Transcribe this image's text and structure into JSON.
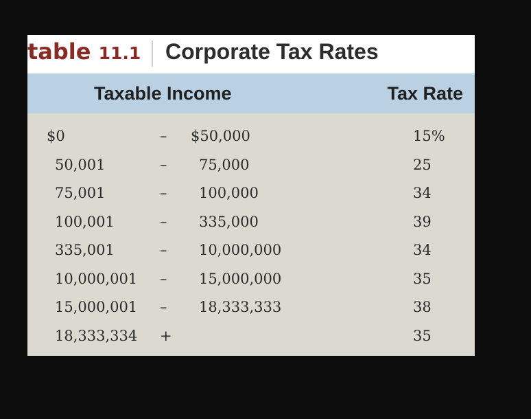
{
  "header": {
    "label_word": "table",
    "label_number": "11.1",
    "title": "Corporate Tax Rates"
  },
  "columns": {
    "income": "Taxable Income",
    "rate": "Tax Rate"
  },
  "rows": [
    {
      "low": "$0",
      "sep": "–",
      "high": "$50,000",
      "rate": "15%"
    },
    {
      "low": "50,001",
      "sep": "–",
      "high": "75,000",
      "rate": "25"
    },
    {
      "low": "75,001",
      "sep": "–",
      "high": "100,000",
      "rate": "34"
    },
    {
      "low": "100,001",
      "sep": "–",
      "high": "335,000",
      "rate": "39"
    },
    {
      "low": "335,001",
      "sep": "–",
      "high": "10,000,000",
      "rate": "34"
    },
    {
      "low": "10,000,001",
      "sep": "–",
      "high": "15,000,000",
      "rate": "35"
    },
    {
      "low": "15,000,001",
      "sep": "–",
      "high": "18,333,333",
      "rate": "38"
    },
    {
      "low": "18,333,334",
      "sep": "+",
      "high": "",
      "rate": "35"
    }
  ]
}
